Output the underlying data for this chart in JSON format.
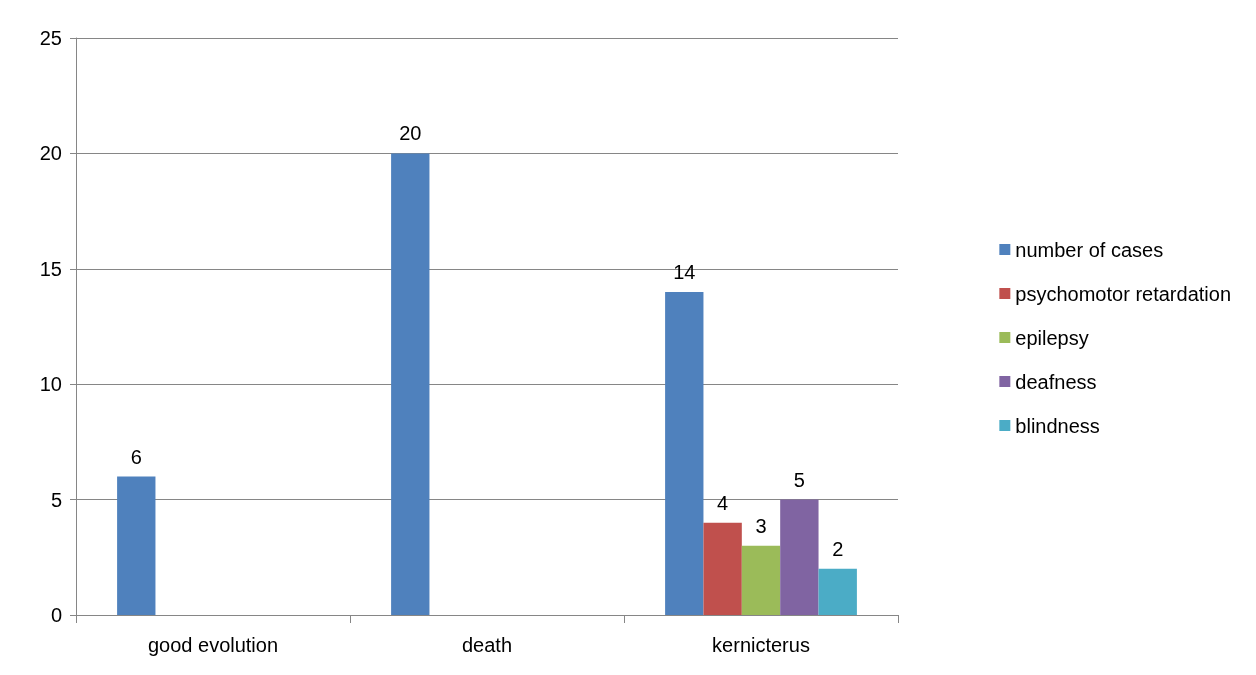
{
  "chart_data": {
    "type": "bar",
    "categories": [
      "good evolution",
      "death",
      "kernicterus"
    ],
    "series": [
      {
        "name": "number of cases",
        "color": "#4f81bd",
        "values": [
          6,
          20,
          14
        ]
      },
      {
        "name": "psychomotor retardation",
        "color": "#c0504d",
        "values": [
          null,
          null,
          4
        ]
      },
      {
        "name": "epilepsy",
        "color": "#9bbb59",
        "values": [
          null,
          null,
          3
        ]
      },
      {
        "name": "deafness",
        "color": "#8064a2",
        "values": [
          null,
          null,
          5
        ]
      },
      {
        "name": "blindness",
        "color": "#4bacc6",
        "values": [
          null,
          null,
          2
        ]
      }
    ],
    "ylim": [
      0,
      25
    ],
    "yticks": [
      0,
      5,
      10,
      15,
      20,
      25
    ],
    "grid": "y",
    "legend": "right",
    "data_labels": true
  }
}
